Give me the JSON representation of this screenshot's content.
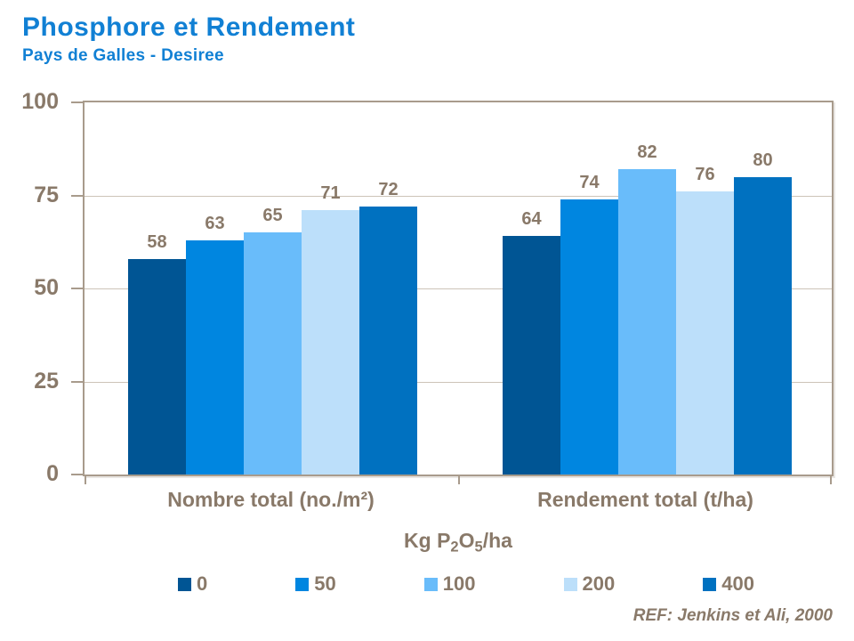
{
  "header": {
    "title": "Phosphore et Rendement",
    "subtitle": "Pays de Galles - Desiree"
  },
  "chart_data": {
    "type": "bar",
    "categories": [
      "Nombre total (no./m²)",
      "Rendement total (t/ha)"
    ],
    "series": [
      {
        "name": "0",
        "color": "#005594",
        "values": [
          58,
          64
        ]
      },
      {
        "name": "50",
        "color": "#0086E0",
        "values": [
          63,
          74
        ]
      },
      {
        "name": "100",
        "color": "#69BCFA",
        "values": [
          65,
          82
        ]
      },
      {
        "name": "200",
        "color": "#BCDFFA",
        "values": [
          71,
          76
        ]
      },
      {
        "name": "400",
        "color": "#0071C0",
        "values": [
          72,
          80
        ]
      }
    ],
    "ylim": [
      0,
      100
    ],
    "yticks": [
      0,
      25,
      50,
      75,
      100
    ],
    "grid": true,
    "legend_position": "bottom",
    "legend_title": {
      "prefix": "Kg P",
      "sub1": "2",
      "mid": "O",
      "sub2": "5",
      "suffix": "/ha"
    }
  },
  "footer": {
    "reference": "REF: Jenkins et Ali, 2000"
  },
  "colors": {
    "title_blue": "#1180D4",
    "label_brown": "#897969",
    "axis_line": "#A89B8C",
    "gridline": "#CDC4B8"
  }
}
